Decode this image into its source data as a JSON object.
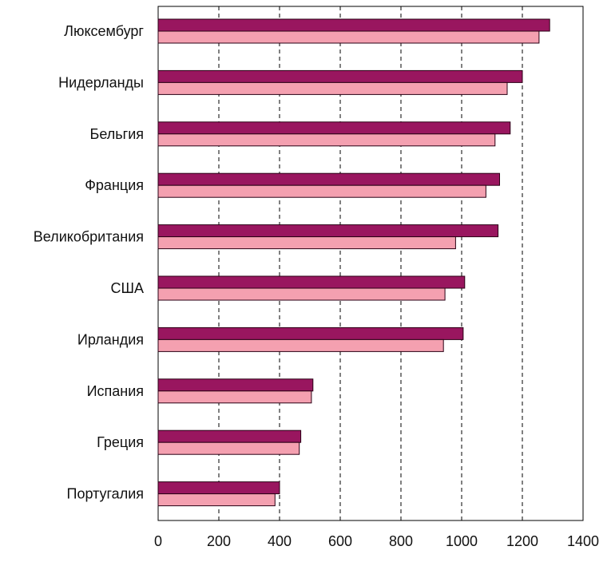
{
  "chart_data": {
    "type": "bar",
    "orientation": "horizontal",
    "title": "",
    "xlabel": "",
    "ylabel": "",
    "categories": [
      "Люксембург",
      "Нидерланды",
      "Бельгия",
      "Франция",
      "Великобритания",
      "США",
      "Ирландия",
      "Испания",
      "Греция",
      "Португалия"
    ],
    "series": [
      {
        "name": "series-1",
        "color": "#99165f",
        "values": [
          1290,
          1200,
          1160,
          1125,
          1120,
          1010,
          1005,
          510,
          470,
          400
        ]
      },
      {
        "name": "series-2",
        "color": "#f4a0b0",
        "values": [
          1255,
          1150,
          1110,
          1080,
          980,
          945,
          940,
          505,
          465,
          385
        ]
      }
    ],
    "xlim": [
      0,
      1400
    ],
    "xticks": [
      0,
      200,
      400,
      600,
      800,
      1000,
      1200,
      1400
    ],
    "xtick_labels": [
      "0",
      "200",
      "400",
      "600",
      "800",
      "1000",
      "1200",
      "1400"
    ],
    "grid": "vertical dashed",
    "legend": "none"
  }
}
